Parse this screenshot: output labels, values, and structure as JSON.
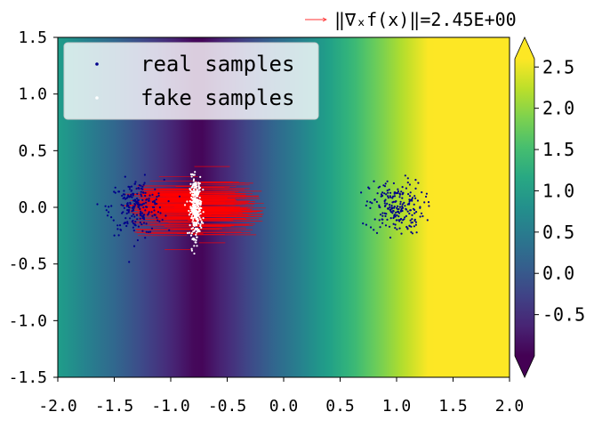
{
  "chart_data": {
    "type": "scatter",
    "title": "",
    "xlabel": "",
    "ylabel": "",
    "xlim": [
      -2.0,
      2.0
    ],
    "ylim": [
      -1.5,
      1.5
    ],
    "x_ticks": [
      "-2.0",
      "-1.5",
      "-1.0",
      "-0.5",
      "0.0",
      "0.5",
      "1.0",
      "1.5",
      "2.0"
    ],
    "y_ticks": [
      "1.5",
      "1.0",
      "0.5",
      "0.0",
      "-0.5",
      "-1.0",
      "-1.5"
    ],
    "background": {
      "type": "heatmap",
      "colormap": "viridis",
      "varies_along": "x",
      "min_at_x": -0.75,
      "value_range": [
        -1.0,
        2.6
      ]
    },
    "colorbar": {
      "ticks": [
        "2.5",
        "2.0",
        "1.5",
        "1.0",
        "0.5",
        "0.0",
        "-0.5"
      ],
      "range": [
        -1.0,
        2.6
      ],
      "extend": "both"
    },
    "legend": {
      "placement": "upper-left",
      "entries": [
        "real samples",
        "fake samples"
      ]
    },
    "gradient_legend": {
      "label": "‖∇ₓf(x)‖=2.45E+00",
      "placement": "above-top-right"
    },
    "series": [
      {
        "name": "real samples",
        "color": "#00008b",
        "clusters": [
          {
            "center": [
              -1.3,
              0.0
            ],
            "spread": [
              0.12,
              0.12
            ],
            "count": 220
          },
          {
            "center": [
              1.0,
              0.0
            ],
            "spread": [
              0.12,
              0.12
            ],
            "count": 220
          }
        ]
      },
      {
        "name": "fake samples",
        "color": "#ffffff",
        "clusters": [
          {
            "center": [
              -0.78,
              0.0
            ],
            "spread": [
              0.025,
              0.13
            ],
            "count": 300
          }
        ]
      }
    ],
    "gradient_arrows": {
      "color": "#ff0000",
      "anchor_x": -0.78,
      "count": 320,
      "length_range": [
        0.2,
        0.6
      ],
      "direction": "both"
    }
  }
}
